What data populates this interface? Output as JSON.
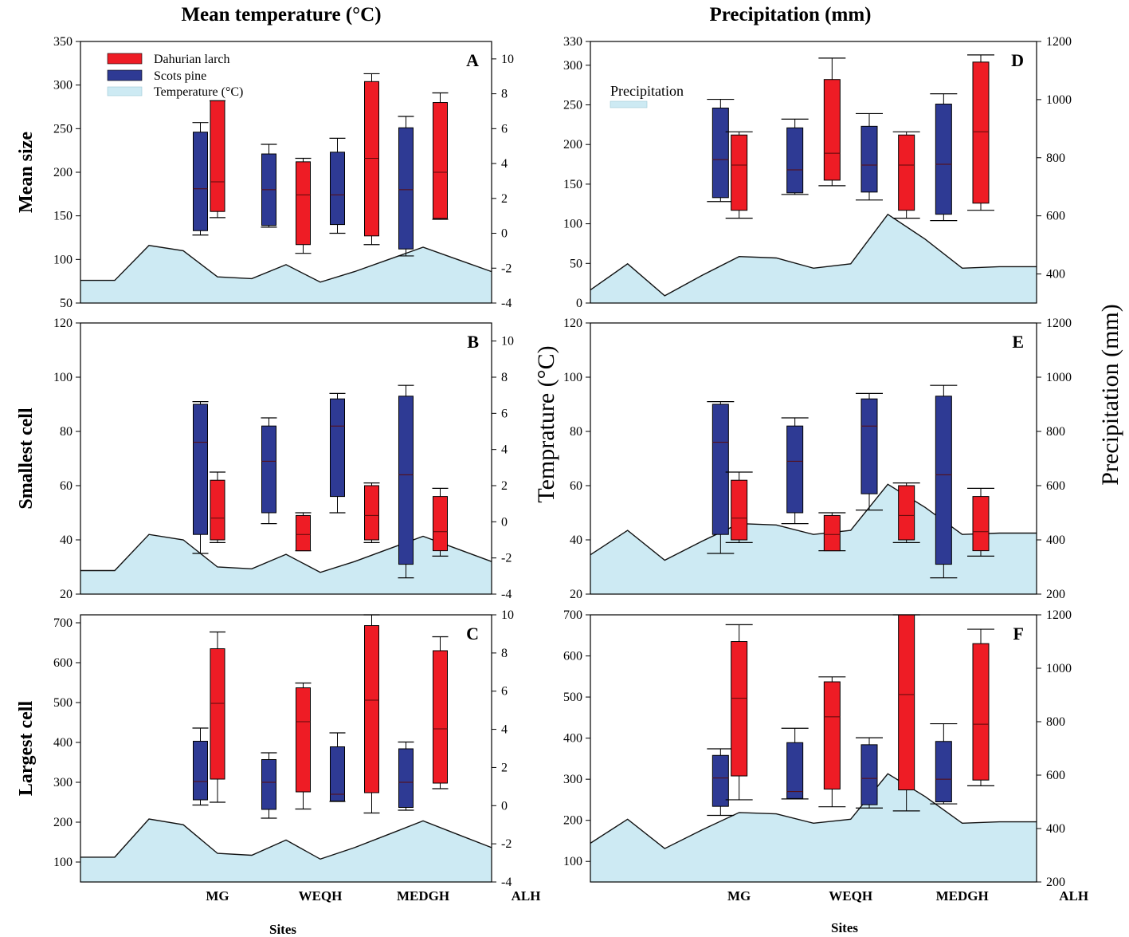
{
  "titles": {
    "left": "Mean temperature (°C)",
    "right": "Precipitation (mm)"
  },
  "legend": {
    "larch": "Dahurian larch",
    "pine": "Scots pine",
    "temperature": "Temperature (°C)",
    "precipitation": "Precipitation"
  },
  "axis_labels": {
    "xlabel": "Sites",
    "right_temp": "Temprature (°C)",
    "right_precip": "Precipitation (mm)"
  },
  "colors": {
    "larch": "#ee1c25",
    "pine": "#2e3a94",
    "area": "#cdeaf3"
  },
  "chart_data": [
    {
      "id": "A",
      "type": "box",
      "ylabel": "Mean size",
      "ylim": [
        50,
        350
      ],
      "yticks": [
        50,
        100,
        150,
        200,
        250,
        300,
        350
      ],
      "y2lim": [
        -4,
        11
      ],
      "y2ticks": [
        -4,
        -2,
        0,
        2,
        4,
        6,
        8,
        10
      ],
      "categories": [
        "MG",
        "WEQH",
        "MEDGH",
        "ALH"
      ],
      "boxes": [
        {
          "species": "pine",
          "x": 1.75,
          "whislo": 128,
          "q1": 133,
          "med": 181,
          "q3": 246,
          "whishi": 257
        },
        {
          "species": "larch",
          "x": 2.0,
          "whislo": 148,
          "q1": 155,
          "med": 189,
          "q3": 282,
          "whishi": 282
        },
        {
          "species": "pine",
          "x": 2.75,
          "whislo": 137,
          "q1": 139,
          "med": 180,
          "q3": 221,
          "whishi": 232
        },
        {
          "species": "larch",
          "x": 3.25,
          "whislo": 107,
          "q1": 117,
          "med": 174,
          "q3": 212,
          "whishi": 216
        },
        {
          "species": "pine",
          "x": 3.75,
          "whislo": 130,
          "q1": 140,
          "med": 174,
          "q3": 223,
          "whishi": 239
        },
        {
          "species": "larch",
          "x": 4.25,
          "whislo": 117,
          "q1": 127,
          "med": 216,
          "q3": 304,
          "whishi": 313
        },
        {
          "species": "pine",
          "x": 4.75,
          "whislo": 104,
          "q1": 112,
          "med": 180,
          "q3": 251,
          "whishi": 264
        },
        {
          "species": "larch",
          "x": 5.25,
          "whislo": 146,
          "q1": 147,
          "med": 200,
          "q3": 280,
          "whishi": 291
        }
      ],
      "area": {
        "name": "Temperature (°C)",
        "x": [
          0,
          0.5,
          1,
          1.5,
          2,
          2.5,
          3,
          3.5,
          4,
          4.5,
          5,
          5.5,
          6
        ],
        "values": [
          -2.7,
          -2.7,
          -0.7,
          -1,
          -2.5,
          -2.6,
          -1.8,
          -2.8,
          -2.2,
          -1.5,
          -0.8,
          -1.5,
          -2.2
        ]
      }
    },
    {
      "id": "B",
      "type": "box",
      "ylabel": "Smallest cell",
      "ylim": [
        20,
        120
      ],
      "yticks": [
        20,
        40,
        60,
        80,
        100,
        120
      ],
      "y2lim": [
        -4,
        11
      ],
      "y2ticks": [
        -4,
        -2,
        0,
        2,
        4,
        6,
        8,
        10
      ],
      "categories": [
        "MG",
        "WEQH",
        "MEDGH",
        "ALH"
      ],
      "boxes": [
        {
          "species": "pine",
          "x": 1.75,
          "whislo": 35,
          "q1": 42,
          "med": 76,
          "q3": 90,
          "whishi": 91
        },
        {
          "species": "larch",
          "x": 2.0,
          "whislo": 39,
          "q1": 40,
          "med": 48,
          "q3": 62,
          "whishi": 65
        },
        {
          "species": "pine",
          "x": 2.75,
          "whislo": 46,
          "q1": 50,
          "med": 69,
          "q3": 82,
          "whishi": 85
        },
        {
          "species": "larch",
          "x": 3.25,
          "whislo": 36,
          "q1": 36,
          "med": 42,
          "q3": 49,
          "whishi": 50
        },
        {
          "species": "pine",
          "x": 3.75,
          "whislo": 50,
          "q1": 56,
          "med": 82,
          "q3": 92,
          "whishi": 94
        },
        {
          "species": "larch",
          "x": 4.25,
          "whislo": 39,
          "q1": 40,
          "med": 49,
          "q3": 60,
          "whishi": 61
        },
        {
          "species": "pine",
          "x": 4.75,
          "whislo": 26,
          "q1": 31,
          "med": 64,
          "q3": 93,
          "whishi": 97
        },
        {
          "species": "larch",
          "x": 5.25,
          "whislo": 34,
          "q1": 36,
          "med": 43,
          "q3": 56,
          "whishi": 59
        }
      ],
      "area": {
        "name": "Temperature (°C)",
        "x": [
          0,
          0.5,
          1,
          1.5,
          2,
          2.5,
          3,
          3.5,
          4,
          4.5,
          5,
          5.5,
          6
        ],
        "values": [
          -2.7,
          -2.7,
          -0.7,
          -1,
          -2.5,
          -2.6,
          -1.8,
          -2.8,
          -2.2,
          -1.5,
          -0.8,
          -1.5,
          -2.2
        ]
      }
    },
    {
      "id": "C",
      "type": "box",
      "ylabel": "Largest cell",
      "ylim": [
        50,
        720
      ],
      "yticks": [
        100,
        200,
        300,
        400,
        500,
        600,
        700
      ],
      "y2lim": [
        -4,
        10
      ],
      "y2ticks": [
        -4,
        -2,
        0,
        2,
        4,
        6,
        8,
        10
      ],
      "categories": [
        "MG",
        "WEQH",
        "MEDGH",
        "ALH"
      ],
      "boxes": [
        {
          "species": "pine",
          "x": 1.75,
          "whislo": 243,
          "q1": 256,
          "med": 302,
          "q3": 403,
          "whishi": 436
        },
        {
          "species": "larch",
          "x": 2.0,
          "whislo": 250,
          "q1": 308,
          "med": 498,
          "q3": 635,
          "whishi": 677
        },
        {
          "species": "pine",
          "x": 2.75,
          "whislo": 210,
          "q1": 232,
          "med": 300,
          "q3": 357,
          "whishi": 374
        },
        {
          "species": "larch",
          "x": 3.25,
          "whislo": 233,
          "q1": 276,
          "med": 452,
          "q3": 537,
          "whishi": 549
        },
        {
          "species": "pine",
          "x": 3.75,
          "whislo": 252,
          "q1": 253,
          "med": 270,
          "q3": 389,
          "whishi": 424
        },
        {
          "species": "larch",
          "x": 4.25,
          "whislo": 223,
          "q1": 274,
          "med": 506,
          "q3": 693,
          "whishi": 720
        },
        {
          "species": "pine",
          "x": 4.75,
          "whislo": 230,
          "q1": 237,
          "med": 300,
          "q3": 384,
          "whishi": 401
        },
        {
          "species": "larch",
          "x": 5.25,
          "whislo": 284,
          "q1": 298,
          "med": 434,
          "q3": 630,
          "whishi": 665
        }
      ],
      "area": {
        "name": "Temperature (°C)",
        "x": [
          0,
          0.5,
          1,
          1.5,
          2,
          2.5,
          3,
          3.5,
          4,
          4.5,
          5,
          5.5,
          6
        ],
        "values": [
          -2.7,
          -2.7,
          -0.7,
          -1,
          -2.5,
          -2.6,
          -1.8,
          -2.8,
          -2.2,
          -1.5,
          -0.8,
          -1.5,
          -2.2
        ]
      }
    },
    {
      "id": "D",
      "type": "box",
      "ylabel": "",
      "ylim": [
        0,
        330
      ],
      "yticks": [
        0,
        50,
        100,
        150,
        200,
        250,
        300,
        330
      ],
      "y2lim": [
        300,
        1200
      ],
      "y2ticks": [
        400,
        600,
        800,
        1000,
        1200
      ],
      "categories": [
        "MG",
        "WEQH",
        "MEDGH",
        "ALH"
      ],
      "boxes": [
        {
          "species": "pine",
          "x": 1.75,
          "whislo": 128,
          "q1": 133,
          "med": 181,
          "q3": 246,
          "whishi": 257
        },
        {
          "species": "larch",
          "x": 2.0,
          "whislo": 107,
          "q1": 117,
          "med": 174,
          "q3": 212,
          "whishi": 216
        },
        {
          "species": "pine",
          "x": 2.75,
          "whislo": 137,
          "q1": 139,
          "med": 168,
          "q3": 221,
          "whishi": 232
        },
        {
          "species": "larch",
          "x": 3.25,
          "whislo": 148,
          "q1": 155,
          "med": 189,
          "q3": 282,
          "whishi": 309
        },
        {
          "species": "pine",
          "x": 3.75,
          "whislo": 130,
          "q1": 140,
          "med": 174,
          "q3": 223,
          "whishi": 239
        },
        {
          "species": "larch",
          "x": 4.25,
          "whislo": 107,
          "q1": 117,
          "med": 174,
          "q3": 212,
          "whishi": 216
        },
        {
          "species": "pine",
          "x": 4.75,
          "whislo": 104,
          "q1": 112,
          "med": 175,
          "q3": 251,
          "whishi": 264
        },
        {
          "species": "larch",
          "x": 5.25,
          "whislo": 117,
          "q1": 126,
          "med": 216,
          "q3": 304,
          "whishi": 313
        }
      ],
      "area": {
        "name": "Precipitation",
        "x": [
          0,
          0.5,
          1,
          1.5,
          2,
          2.5,
          3,
          3.5,
          4,
          4.5,
          5,
          5.5,
          6
        ],
        "values": [
          345,
          435,
          325,
          395,
          460,
          455,
          420,
          435,
          605,
          520,
          420,
          425,
          425
        ]
      }
    },
    {
      "id": "E",
      "type": "box",
      "ylabel": "",
      "ylim": [
        20,
        120
      ],
      "yticks": [
        20,
        40,
        60,
        80,
        100,
        120
      ],
      "y2lim": [
        200,
        1200
      ],
      "y2ticks": [
        200,
        400,
        600,
        800,
        1000,
        1200
      ],
      "categories": [
        "MG",
        "WEQH",
        "MEDGH",
        "ALH"
      ],
      "boxes": [
        {
          "species": "pine",
          "x": 1.75,
          "whislo": 35,
          "q1": 42,
          "med": 76,
          "q3": 90,
          "whishi": 91
        },
        {
          "species": "larch",
          "x": 2.0,
          "whislo": 39,
          "q1": 40,
          "med": 48,
          "q3": 62,
          "whishi": 65
        },
        {
          "species": "pine",
          "x": 2.75,
          "whislo": 46,
          "q1": 50,
          "med": 69,
          "q3": 82,
          "whishi": 85
        },
        {
          "species": "larch",
          "x": 3.25,
          "whislo": 36,
          "q1": 36,
          "med": 42,
          "q3": 49,
          "whishi": 50
        },
        {
          "species": "pine",
          "x": 3.75,
          "whislo": 51,
          "q1": 57,
          "med": 82,
          "q3": 92,
          "whishi": 94
        },
        {
          "species": "larch",
          "x": 4.25,
          "whislo": 39,
          "q1": 40,
          "med": 49,
          "q3": 60,
          "whishi": 61
        },
        {
          "species": "pine",
          "x": 4.75,
          "whislo": 26,
          "q1": 31,
          "med": 64,
          "q3": 93,
          "whishi": 97
        },
        {
          "species": "larch",
          "x": 5.25,
          "whislo": 34,
          "q1": 36,
          "med": 43,
          "q3": 56,
          "whishi": 59
        }
      ],
      "area": {
        "name": "Precipitation",
        "x": [
          0,
          0.5,
          1,
          1.5,
          2,
          2.5,
          3,
          3.5,
          4,
          4.5,
          5,
          5.5,
          6
        ],
        "values": [
          345,
          435,
          325,
          395,
          460,
          455,
          420,
          435,
          605,
          520,
          420,
          425,
          425
        ]
      }
    },
    {
      "id": "F",
      "type": "box",
      "ylabel": "",
      "ylim": [
        50,
        700
      ],
      "yticks": [
        100,
        200,
        300,
        400,
        500,
        600,
        700
      ],
      "y2lim": [
        200,
        1200
      ],
      "y2ticks": [
        200,
        400,
        600,
        800,
        1000,
        1200
      ],
      "categories": [
        "MG",
        "WEQH",
        "MEDGH",
        "ALH"
      ],
      "boxes": [
        {
          "species": "pine",
          "x": 1.75,
          "whislo": 212,
          "q1": 234,
          "med": 303,
          "q3": 358,
          "whishi": 374
        },
        {
          "species": "larch",
          "x": 2.0,
          "whislo": 250,
          "q1": 308,
          "med": 497,
          "q3": 635,
          "whishi": 676
        },
        {
          "species": "pine",
          "x": 2.75,
          "whislo": 252,
          "q1": 253,
          "med": 270,
          "q3": 389,
          "whishi": 424
        },
        {
          "species": "larch",
          "x": 3.25,
          "whislo": 233,
          "q1": 276,
          "med": 452,
          "q3": 537,
          "whishi": 549
        },
        {
          "species": "pine",
          "x": 3.75,
          "whislo": 230,
          "q1": 238,
          "med": 302,
          "q3": 384,
          "whishi": 401
        },
        {
          "species": "larch",
          "x": 4.25,
          "whislo": 223,
          "q1": 274,
          "med": 506,
          "q3": 700,
          "whishi": 700
        },
        {
          "species": "pine",
          "x": 4.75,
          "whislo": 240,
          "q1": 245,
          "med": 300,
          "q3": 392,
          "whishi": 435
        },
        {
          "species": "larch",
          "x": 5.25,
          "whislo": 284,
          "q1": 298,
          "med": 434,
          "q3": 630,
          "whishi": 665
        }
      ],
      "area": {
        "name": "Precipitation",
        "x": [
          0,
          0.5,
          1,
          1.5,
          2,
          2.5,
          3,
          3.5,
          4,
          4.5,
          5,
          5.5,
          6
        ],
        "values": [
          345,
          435,
          325,
          395,
          460,
          455,
          420,
          435,
          605,
          520,
          420,
          425,
          425
        ]
      }
    }
  ]
}
